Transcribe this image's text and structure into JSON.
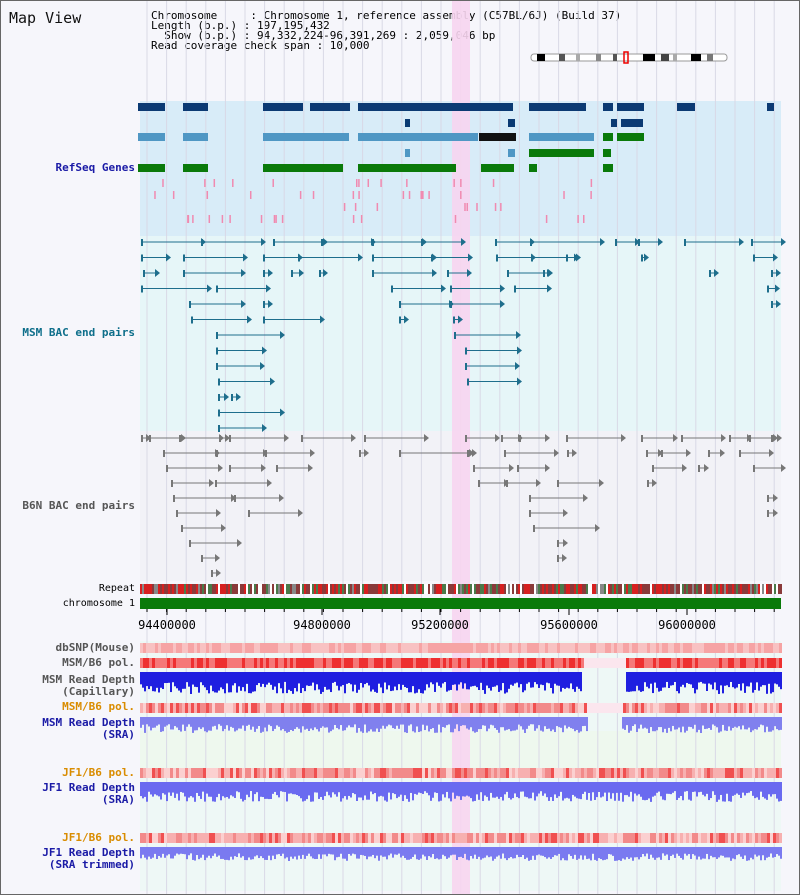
{
  "page": {
    "title": "Map View"
  },
  "info": {
    "line1": "Chromosome     : Chromosome 1, reference assembly (C57BL/6J) (Build 37)",
    "line2": "Length (b.p.) : 197,195,432",
    "line3": "  Show (b.p.) : 94,332,224-96,391,269 : 2,059,046 bp",
    "line4": "Read coverage check span : 10,000"
  },
  "tracks": {
    "refseq": "RefSeq Genes",
    "msm_bac": "MSM BAC end pairs",
    "b6n_bac": "B6N BAC end pairs",
    "repeat": "Repeat",
    "chromosome": "chromosome 1",
    "dbsnp": "dbSNP(Mouse)",
    "msm_b6_pol": "MSM/B6 pol.",
    "msm_read_cap_1": "MSM Read Depth",
    "msm_read_cap_2": "(Capillary)",
    "msm_b6_pol_2": "MSM/B6 pol.",
    "msm_read_sra_1": "MSM Read Depth",
    "msm_read_sra_2": "(SRA)",
    "jf1_b6_pol": "JF1/B6 pol.",
    "jf1_read_sra_1": "JF1 Read Depth",
    "jf1_read_sra_2": "(SRA)",
    "jf1_b6_pol_2": "JF1/B6 pol.",
    "jf1_read_trim_1": "JF1 Read Depth",
    "jf1_read_trim_2": "(SRA trimmed)"
  },
  "axis": {
    "ticks": [
      "94400000",
      "94800000",
      "95200000",
      "95600000",
      "96000000"
    ]
  },
  "colors": {
    "refseq_dark": "#0b3a73",
    "refseq_mid": "#4f97c4",
    "refseq_green": "#0a7a0a",
    "msm_line": "#1e6e8c",
    "b6n_line": "#777777",
    "highlight": "#f7d5ef",
    "label_blue": "#1a1aa6",
    "label_teal": "#0d6e8a",
    "label_orange": "#d98c00"
  }
}
